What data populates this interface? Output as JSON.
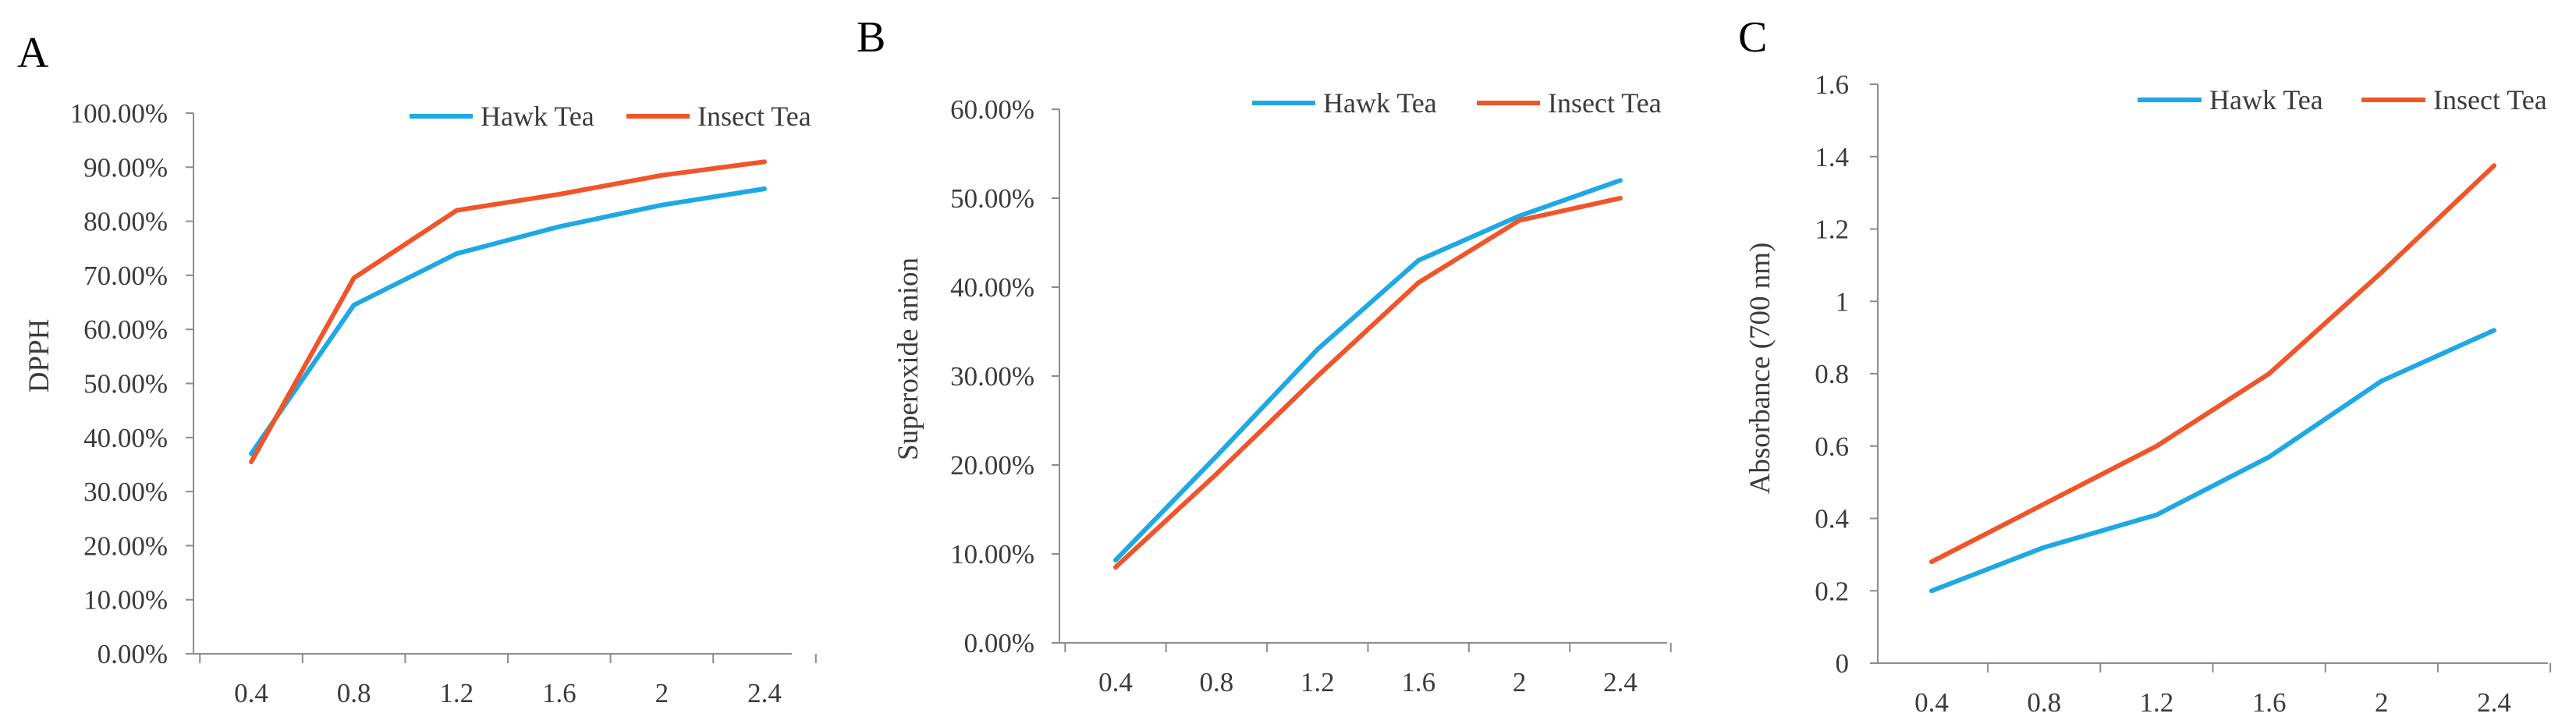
{
  "colors": {
    "hawk": "#1ea8e4",
    "insect": "#f0552a"
  },
  "chart_data": [
    {
      "panel": "A",
      "type": "line",
      "title": "",
      "xlabel": "",
      "ylabel": "DPPH",
      "x": [
        "0.4",
        "0.8",
        "1.2",
        "1.6",
        "2",
        "2.4"
      ],
      "ylim": [
        0,
        1
      ],
      "yticks": [
        {
          "value": 0.0,
          "label": "0.00%"
        },
        {
          "value": 0.1,
          "label": "10.00%"
        },
        {
          "value": 0.2,
          "label": "20.00%"
        },
        {
          "value": 0.3,
          "label": "30.00%"
        },
        {
          "value": 0.4,
          "label": "40.00%"
        },
        {
          "value": 0.5,
          "label": "50.00%"
        },
        {
          "value": 0.6,
          "label": "60.00%"
        },
        {
          "value": 0.7,
          "label": "70.00%"
        },
        {
          "value": 0.8,
          "label": "80.00%"
        },
        {
          "value": 0.9,
          "label": "90.00%"
        },
        {
          "value": 1.0,
          "label": "100.00%"
        }
      ],
      "legend_position": "top-right",
      "series": [
        {
          "name": "Hawk Tea",
          "color_key": "hawk",
          "values": [
            0.37,
            0.645,
            0.74,
            0.79,
            0.83,
            0.86
          ]
        },
        {
          "name": "Insect Tea",
          "color_key": "insect",
          "values": [
            0.355,
            0.695,
            0.82,
            0.85,
            0.885,
            0.91
          ]
        }
      ]
    },
    {
      "panel": "B",
      "type": "line",
      "title": "",
      "xlabel": "",
      "ylabel": "Superoxide anion",
      "x": [
        "0.4",
        "0.8",
        "1.2",
        "1.6",
        "2",
        "2.4"
      ],
      "ylim": [
        0,
        0.6
      ],
      "yticks": [
        {
          "value": 0.0,
          "label": "0.00%"
        },
        {
          "value": 0.1,
          "label": "10.00%"
        },
        {
          "value": 0.2,
          "label": "20.00%"
        },
        {
          "value": 0.3,
          "label": "30.00%"
        },
        {
          "value": 0.4,
          "label": "40.00%"
        },
        {
          "value": 0.5,
          "label": "50.00%"
        },
        {
          "value": 0.6,
          "label": "60.00%"
        }
      ],
      "legend_position": "top-right",
      "series": [
        {
          "name": "Hawk Tea",
          "color_key": "hawk",
          "values": [
            0.093,
            0.21,
            0.33,
            0.43,
            0.48,
            0.52
          ]
        },
        {
          "name": "Insect Tea",
          "color_key": "insect",
          "values": [
            0.085,
            0.19,
            0.3,
            0.405,
            0.475,
            0.5
          ]
        }
      ]
    },
    {
      "panel": "C",
      "type": "line",
      "title": "",
      "xlabel": "",
      "ylabel": "Absorbance (700 nm)",
      "x": [
        "0.4",
        "0.8",
        "1.2",
        "1.6",
        "2",
        "2.4"
      ],
      "ylim": [
        0,
        1.6
      ],
      "yticks": [
        {
          "value": 0.0,
          "label": "0"
        },
        {
          "value": 0.2,
          "label": "0.2"
        },
        {
          "value": 0.4,
          "label": "0.4"
        },
        {
          "value": 0.6,
          "label": "0.6"
        },
        {
          "value": 0.8,
          "label": "0.8"
        },
        {
          "value": 1.0,
          "label": "1"
        },
        {
          "value": 1.2,
          "label": "1.2"
        },
        {
          "value": 1.4,
          "label": "1.4"
        },
        {
          "value": 1.6,
          "label": "1.6"
        }
      ],
      "legend_position": "top-right",
      "series": [
        {
          "name": "Hawk Tea",
          "color_key": "hawk",
          "values": [
            0.2,
            0.32,
            0.41,
            0.57,
            0.78,
            0.92
          ]
        },
        {
          "name": "Insect Tea",
          "color_key": "insect",
          "values": [
            0.28,
            0.44,
            0.6,
            0.8,
            1.08,
            1.375
          ]
        }
      ]
    }
  ]
}
